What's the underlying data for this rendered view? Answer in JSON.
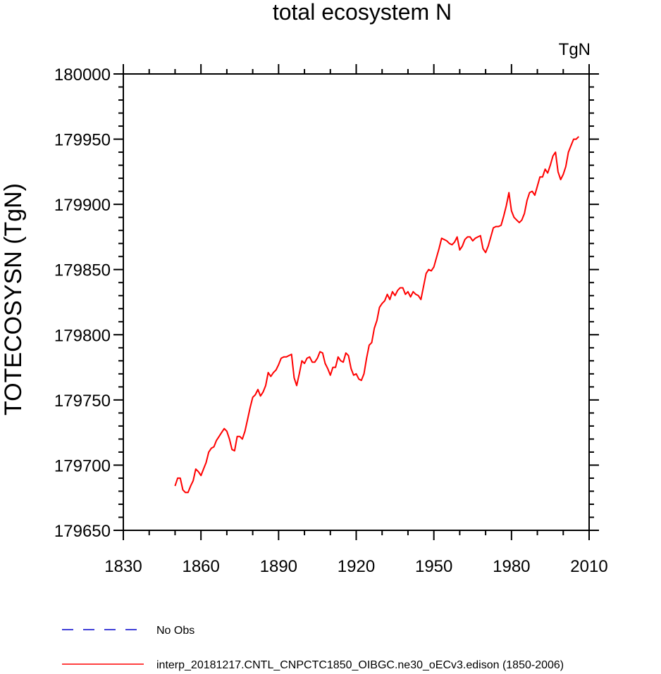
{
  "chart_data": {
    "type": "line",
    "title": "total ecosystem N",
    "units": "TgN",
    "ylabel": "TOTECOSYSN  (TgN)",
    "xlabel": "",
    "xlim": [
      1830,
      2010
    ],
    "ylim": [
      179650,
      180000
    ],
    "xticks": [
      "1830",
      "1860",
      "1890",
      "1920",
      "1950",
      "1980",
      "2010"
    ],
    "yticks": [
      "179650",
      "179700",
      "179750",
      "179800",
      "179850",
      "179900",
      "179950",
      "180000"
    ],
    "legend": [
      {
        "label": "No Obs",
        "color": "#0000cc",
        "style": "dashed"
      },
      {
        "label": "interp_20181217.CNTL_CNPCTC1850_OIBGC.ne30_oECv3.edison (1850-2006)",
        "color": "#ff0000",
        "style": "solid"
      }
    ],
    "series": [
      {
        "name": "interp_20181217.CNTL_CNPCTC1850_OIBGC.ne30_oECv3.edison (1850-2006)",
        "color": "#ff0000",
        "x": [
          1850,
          1851,
          1852,
          1853,
          1854,
          1855,
          1856,
          1857,
          1858,
          1859,
          1860,
          1861,
          1862,
          1863,
          1864,
          1865,
          1866,
          1867,
          1868,
          1869,
          1870,
          1871,
          1872,
          1873,
          1874,
          1875,
          1876,
          1877,
          1878,
          1879,
          1880,
          1881,
          1882,
          1883,
          1884,
          1885,
          1886,
          1887,
          1888,
          1889,
          1890,
          1891,
          1892,
          1893,
          1894,
          1895,
          1896,
          1897,
          1898,
          1899,
          1900,
          1901,
          1902,
          1903,
          1904,
          1905,
          1906,
          1907,
          1908,
          1909,
          1910,
          1911,
          1912,
          1913,
          1914,
          1915,
          1916,
          1917,
          1918,
          1919,
          1920,
          1921,
          1922,
          1923,
          1924,
          1925,
          1926,
          1927,
          1928,
          1929,
          1930,
          1931,
          1932,
          1933,
          1934,
          1935,
          1936,
          1937,
          1938,
          1939,
          1940,
          1941,
          1942,
          1943,
          1944,
          1945,
          1946,
          1947,
          1948,
          1949,
          1950,
          1951,
          1952,
          1953,
          1954,
          1955,
          1956,
          1957,
          1958,
          1959,
          1960,
          1961,
          1962,
          1963,
          1964,
          1965,
          1966,
          1967,
          1968,
          1969,
          1970,
          1971,
          1972,
          1973,
          1974,
          1975,
          1976,
          1977,
          1978,
          1979,
          1980,
          1981,
          1982,
          1983,
          1984,
          1985,
          1986,
          1987,
          1988,
          1989,
          1990,
          1991,
          1992,
          1993,
          1994,
          1995,
          1996,
          1997,
          1998,
          1999,
          2000,
          2001,
          2002,
          2003,
          2004,
          2005,
          2006
        ],
        "y": [
          179684,
          179690,
          179690,
          179681,
          179679,
          179679,
          179684,
          179688,
          179697,
          179695,
          179692,
          179697,
          179702,
          179710,
          179713,
          179714,
          179719,
          179722,
          179725,
          179728,
          179726,
          179720,
          179712,
          179711,
          179722,
          179722,
          179720,
          179726,
          179735,
          179744,
          179752,
          179754,
          179758,
          179753,
          179756,
          179761,
          179771,
          179768,
          179771,
          179773,
          179777,
          179782,
          179783,
          179783,
          179784,
          179785,
          179767,
          179761,
          179770,
          179780,
          179778,
          179782,
          179783,
          179779,
          179779,
          179782,
          179787,
          179786,
          179778,
          179774,
          179769,
          179775,
          179775,
          179783,
          179780,
          179779,
          179786,
          179784,
          179774,
          179769,
          179770,
          179766,
          179765,
          179770,
          179782,
          179792,
          179794,
          179805,
          179811,
          179821,
          179824,
          179826,
          179831,
          179827,
          179833,
          179830,
          179834,
          179836,
          179836,
          179831,
          179833,
          179829,
          179833,
          179831,
          179830,
          179827,
          179837,
          179847,
          179850,
          179849,
          179852,
          179859,
          179866,
          179874,
          179873,
          179872,
          179870,
          179869,
          179871,
          179875,
          179865,
          179868,
          179873,
          179875,
          179875,
          179872,
          179874,
          179875,
          179876,
          179866,
          179863,
          179868,
          179875,
          179882,
          179883,
          179883,
          179884,
          179891,
          179899,
          179909,
          179895,
          179890,
          179888,
          179886,
          179888,
          179893,
          179903,
          179909,
          179910,
          179907,
          179914,
          179921,
          179921,
          179927,
          179924,
          179930,
          179937,
          179940,
          179925,
          179919,
          179923,
          179929,
          179940,
          179945,
          179950,
          179950,
          179952
        ]
      }
    ]
  }
}
